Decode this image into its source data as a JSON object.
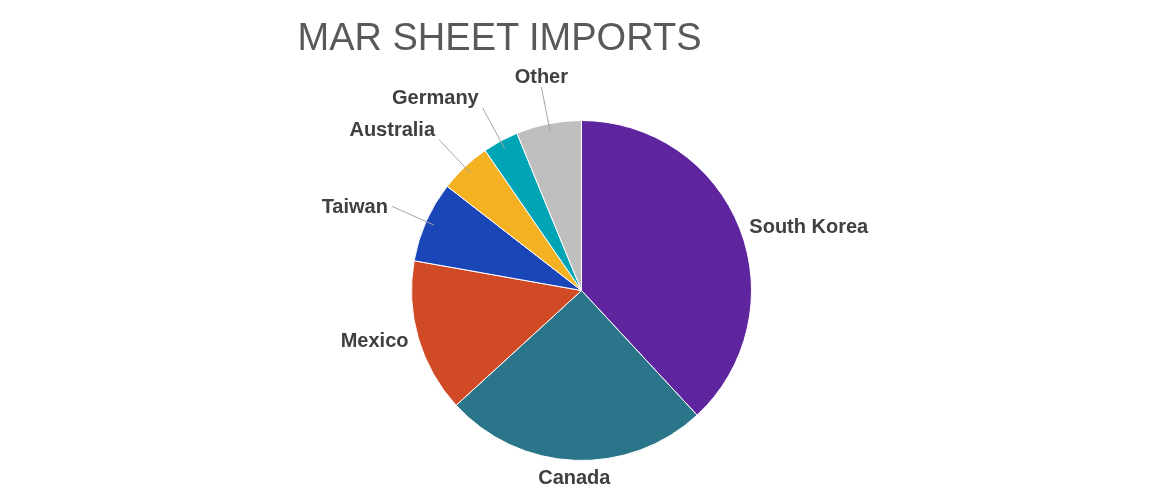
{
  "chart_data": {
    "type": "pie",
    "title": "MAR SHEET IMPORTS",
    "categories": [
      "South Korea",
      "Canada",
      "Mexico",
      "Taiwan",
      "Australia",
      "Germany",
      "Other"
    ],
    "values": [
      38.1,
      25.1,
      14.6,
      7.7,
      4.9,
      3.4,
      6.2
    ],
    "colors": [
      "#5f259f",
      "#2a7589",
      "#d04a26",
      "#1b46b8",
      "#f4b122",
      "#00a5b5",
      "#bfbfbf"
    ]
  }
}
